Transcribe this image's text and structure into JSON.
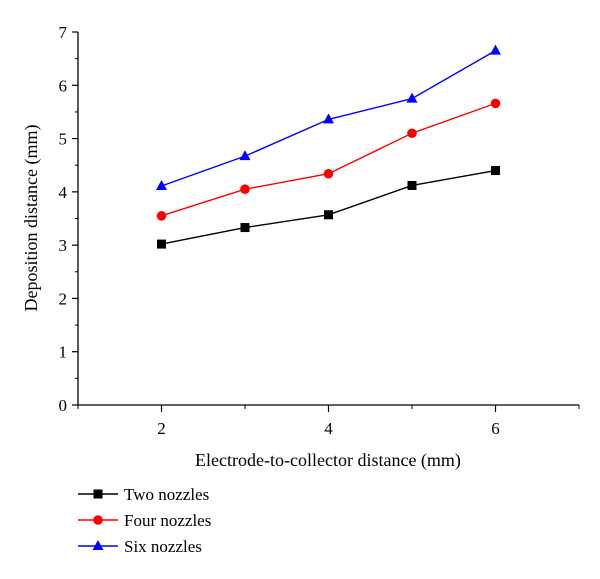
{
  "chart_data": {
    "type": "line",
    "title": "",
    "xlabel": "Electrode-to-collector distance (mm)",
    "ylabel": "Deposition distance (mm)",
    "xlim": [
      1,
      7
    ],
    "ylim": [
      0,
      7
    ],
    "xticks": [
      2,
      4,
      6
    ],
    "yticks": [
      0,
      1,
      2,
      3,
      4,
      5,
      6,
      7
    ],
    "x": [
      2,
      3,
      4,
      5,
      6
    ],
    "grid": false,
    "legend_position": "bottom-left",
    "series": [
      {
        "name": "Two nozzles",
        "values": [
          3.02,
          3.33,
          3.57,
          4.12,
          4.4
        ],
        "color": "#000000",
        "marker": "square"
      },
      {
        "name": "Four nozzles",
        "values": [
          3.55,
          4.05,
          4.34,
          5.1,
          5.66
        ],
        "color": "#ff0000",
        "marker": "circle"
      },
      {
        "name": "Six nozzles",
        "values": [
          4.11,
          4.67,
          5.36,
          5.75,
          6.65
        ],
        "color": "#0000ff",
        "marker": "triangle"
      }
    ]
  }
}
